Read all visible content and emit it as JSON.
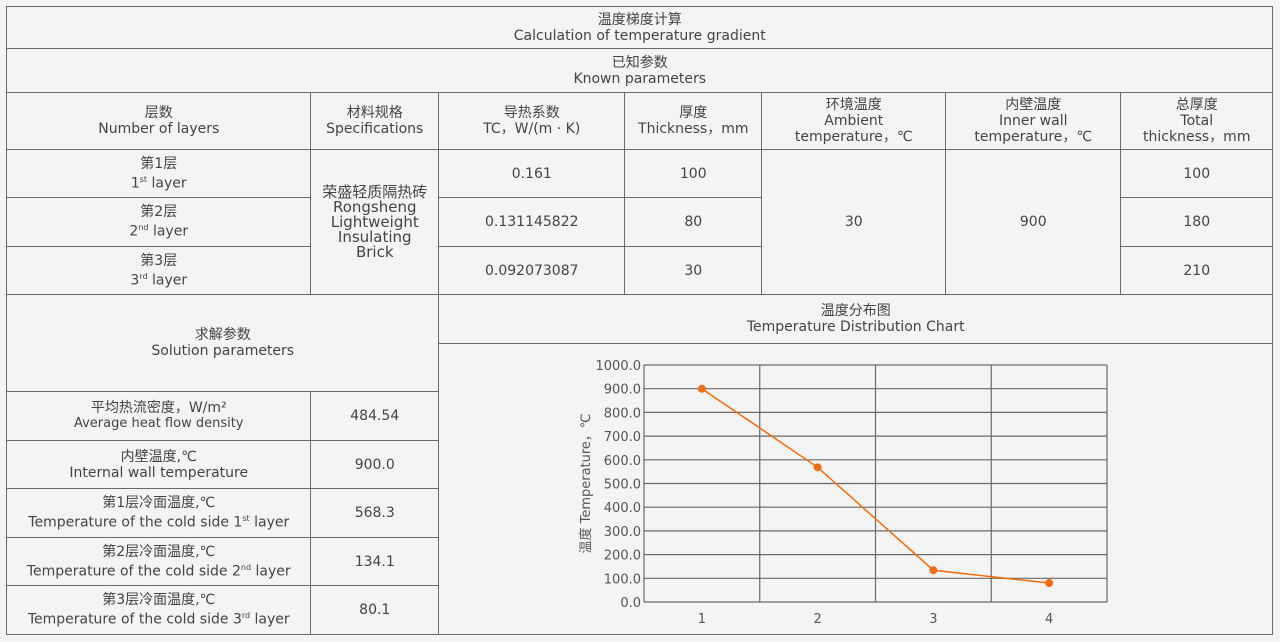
{
  "title": {
    "cn": "温度梯度计算",
    "en": "Calculation of temperature gradient"
  },
  "known": {
    "cn": "已知参数",
    "en": "Known parameters"
  },
  "headers": {
    "layers": {
      "cn": "层数",
      "en": "Number of layers"
    },
    "spec": {
      "cn": "材料规格",
      "en": "Specifications"
    },
    "tc": {
      "cn": "导热系数",
      "en": "TC，W/(m · K)"
    },
    "thickness": {
      "cn": "厚度",
      "en": "Thickness，mm"
    },
    "ambient": {
      "cn": "环境温度",
      "en1": "Ambient",
      "en2": "temperature，℃"
    },
    "inner": {
      "cn": "内壁温度",
      "en1": "Inner wall",
      "en2": "temperature，℃"
    },
    "total": {
      "cn": "总厚度",
      "en1": "Total",
      "en2": "thickness，mm"
    }
  },
  "layers": [
    {
      "cn": "第1层",
      "num": "1",
      "sup": "st",
      "en": "layer",
      "tc": "0.161",
      "thickness": "100",
      "total": "100"
    },
    {
      "cn": "第2层",
      "num": "2",
      "sup": "nd",
      "en": "layer",
      "tc": "0.131145822",
      "thickness": "80",
      "total": "180"
    },
    {
      "cn": "第3层",
      "num": "3",
      "sup": "rd",
      "en": "layer",
      "tc": "0.092073087",
      "thickness": "30",
      "total": "210"
    }
  ],
  "material": {
    "cn": "荣盛轻质隔热砖",
    "en1": "Rongsheng",
    "en2": "Lightweight",
    "en3": "Insulating",
    "en4": "Brick"
  },
  "ambient_value": "30",
  "inner_value": "900",
  "solution": {
    "cn": "求解参数",
    "en": "Solution parameters",
    "rows": [
      {
        "cn": "平均热流密度，W/m²",
        "en": "Average heat flow density",
        "value": "484.54"
      },
      {
        "cn": "内壁温度,℃",
        "en": "Internal wall temperature",
        "value": "900.0"
      },
      {
        "cn": "第1层冷面温度,℃",
        "en": "Temperature of the cold side 1",
        "sup": "st",
        "en2": "layer",
        "value": "568.3"
      },
      {
        "cn": "第2层冷面温度,℃",
        "en": "Temperature of the cold side 2",
        "sup": "nd",
        "en2": "layer",
        "value": "134.1"
      },
      {
        "cn": "第3层冷面温度,℃",
        "en": "Temperature of the cold side 3",
        "sup": "rd",
        "en2": "layer",
        "value": "80.1"
      }
    ]
  },
  "chart_header": {
    "cn": "温度分布图",
    "en": "Temperature Distribution Chart"
  },
  "chart_data": {
    "type": "line",
    "categories": [
      "1",
      "2",
      "3",
      "4"
    ],
    "values": [
      900.0,
      568.3,
      134.1,
      80.1
    ],
    "ylabel": "温度 Temperature，℃",
    "ylim": [
      0,
      1000
    ],
    "yticks": [
      "0.0",
      "100.0",
      "200.0",
      "300.0",
      "400.0",
      "500.0",
      "600.0",
      "700.0",
      "800.0",
      "900.0",
      "1000.0"
    ],
    "grid": true,
    "color": "#f26b0f"
  }
}
